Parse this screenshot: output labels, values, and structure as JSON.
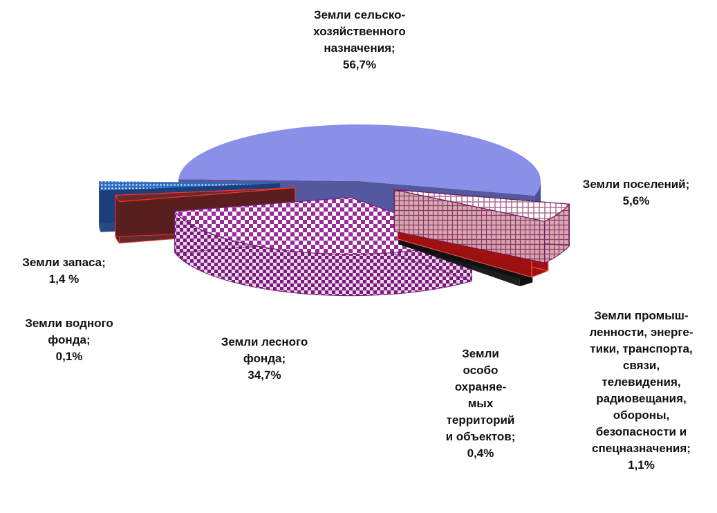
{
  "chart_data": {
    "type": "pie",
    "slices": [
      {
        "label": "Земли сельско-\nхозяйственного\nназначения;\n56,7%",
        "value": 56.7,
        "color": "#8a8fe8"
      },
      {
        "label": "Земли поселений;\n5,6%",
        "value": 5.6,
        "color": "#c9a9b6"
      },
      {
        "label": "Земли промыш-\nленности, энерге-\nтики,  транспорта,\nсвязи,\nтелевидения,\nрадиовещания,\nобороны,\nбезопасности и\nспецназначения;\n1,1%",
        "value": 1.1,
        "color": "#8b0000"
      },
      {
        "label": "Земли\nособо\nохраняе-\nмых\nтерриторий\nи объектов;\n0,4%",
        "value": 0.4,
        "color": "#000000"
      },
      {
        "label": "Земли лесного\nфонда;\n34,7%",
        "value": 34.7,
        "color": "#8a1a8a"
      },
      {
        "label": "Земли водного\nфонда;\n0,1%",
        "value": 0.1,
        "color": "#6b2a2a"
      },
      {
        "label": "Земли запаса;\n1,4 %",
        "value": 1.4,
        "color": "#3a7bd5"
      }
    ]
  }
}
